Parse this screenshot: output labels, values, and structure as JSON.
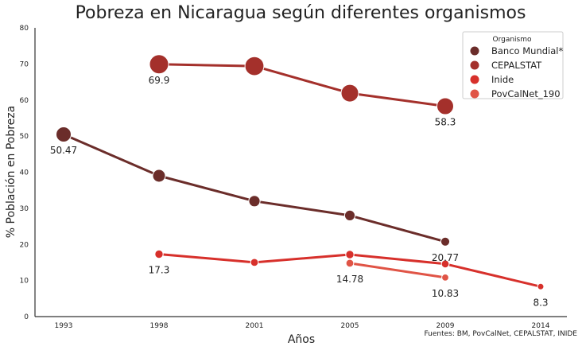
{
  "chart_data": {
    "type": "line",
    "title": "Pobreza en Nicaragua según diferentes organismos",
    "xlabel": "Años",
    "ylabel": "% Población en Pobreza",
    "categories": [
      "1993",
      "1998",
      "2001",
      "2005",
      "2009",
      "2014"
    ],
    "ylim": [
      0,
      80
    ],
    "yticks": [
      0,
      10,
      20,
      30,
      40,
      50,
      60,
      70,
      80
    ],
    "grid": false,
    "legend": {
      "title": "Organismo",
      "placement": "top-right"
    },
    "series": [
      {
        "name": "Banco Mundial*",
        "color": "#6b2d2a",
        "values": [
          50.47,
          39.0,
          32.0,
          28.0,
          20.77,
          null
        ]
      },
      {
        "name": "CEPALSTAT",
        "color": "#a4302b",
        "values": [
          null,
          69.9,
          69.4,
          61.9,
          58.3,
          null
        ]
      },
      {
        "name": "Inide",
        "color": "#d7302b",
        "values": [
          null,
          17.3,
          15.0,
          17.2,
          14.6,
          8.3
        ]
      },
      {
        "name": "PovCalNet_190",
        "color": "#e05446",
        "values": [
          null,
          null,
          null,
          14.78,
          10.83,
          null
        ]
      }
    ],
    "annotations": [
      {
        "text": "50.47",
        "x": "1993",
        "y": 50.47
      },
      {
        "text": "69.9",
        "x": "1998",
        "y": 69.9
      },
      {
        "text": "58.3",
        "x": "2009",
        "y": 58.3
      },
      {
        "text": "17.3",
        "x": "1998",
        "y": 17.3
      },
      {
        "text": "14.78",
        "x": "2005",
        "y": 14.78
      },
      {
        "text": "10.83",
        "x": "2009",
        "y": 10.83
      },
      {
        "text": "20.77",
        "x": "2009",
        "y": 20.77
      },
      {
        "text": "8.3",
        "x": "2014",
        "y": 8.3
      }
    ],
    "source": "Fuentes: BM, PovCalNet, CEPALSTAT, INIDE"
  }
}
